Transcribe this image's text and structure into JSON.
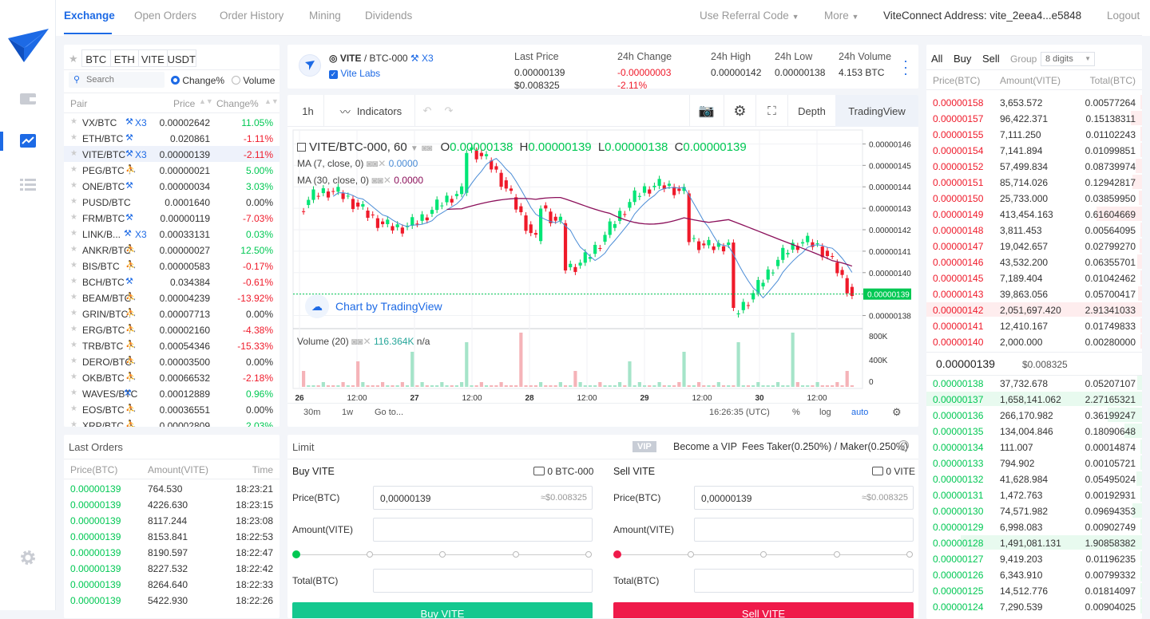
{
  "nav": {
    "tabs": [
      "Exchange",
      "Open Orders",
      "Order History",
      "Mining",
      "Dividends"
    ],
    "referral": "Use Referral Code",
    "more": "More",
    "address": "ViteConnect Address: vite_2eea4...e5848",
    "logout": "Logout"
  },
  "market": {
    "star": "★",
    "quotes": [
      "BTC",
      "ETH",
      "VITE",
      "USDT"
    ],
    "search_placeholder": "Search",
    "sort_change": "Change%",
    "sort_volume": "Volume",
    "head": [
      "Pair",
      "Price",
      "Change%"
    ],
    "pairs": [
      {
        "pair": "VX/BTC",
        "x3": true,
        "icon": "mine",
        "price": "0.00002642",
        "change": "11.05%",
        "up": true
      },
      {
        "pair": "ETH/BTC",
        "x3": false,
        "icon": "mine",
        "price": "0.020861",
        "change": "-1.11%",
        "up": false
      },
      {
        "pair": "VITE/BTC",
        "x3": true,
        "icon": "mine",
        "price": "0.00000139",
        "change": "-2.11%",
        "up": false,
        "selected": true
      },
      {
        "pair": "PEG/BTC",
        "x3": false,
        "icon": "run",
        "price": "0.00000021",
        "change": "5.00%",
        "up": true
      },
      {
        "pair": "ONE/BTC",
        "x3": false,
        "icon": "mine",
        "price": "0.00000034",
        "change": "3.03%",
        "up": true
      },
      {
        "pair": "PUSD/BTC",
        "x3": false,
        "icon": "",
        "price": "0.0001640",
        "change": "0.00%",
        "up": null
      },
      {
        "pair": "FRM/BTC",
        "x3": false,
        "icon": "mine",
        "price": "0.00000119",
        "change": "-7.03%",
        "up": false
      },
      {
        "pair": "LINK/B...",
        "x3": true,
        "icon": "mine",
        "price": "0.00033131",
        "change": "0.03%",
        "up": true
      },
      {
        "pair": "ANKR/BTC",
        "x3": false,
        "icon": "run",
        "price": "0.00000027",
        "change": "12.50%",
        "up": true
      },
      {
        "pair": "BIS/BTC",
        "x3": false,
        "icon": "run",
        "price": "0.00000583",
        "change": "-0.17%",
        "up": false
      },
      {
        "pair": "BCH/BTC",
        "x3": false,
        "icon": "mine",
        "price": "0.034384",
        "change": "-0.61%",
        "up": false
      },
      {
        "pair": "BEAM/BTC",
        "x3": false,
        "icon": "run",
        "price": "0.00004239",
        "change": "-13.92%",
        "up": false
      },
      {
        "pair": "GRIN/BTC",
        "x3": false,
        "icon": "run",
        "price": "0.00007713",
        "change": "0.00%",
        "up": null
      },
      {
        "pair": "ERG/BTC",
        "x3": false,
        "icon": "run",
        "price": "0.00002160",
        "change": "-4.38%",
        "up": false
      },
      {
        "pair": "TRB/BTC",
        "x3": false,
        "icon": "run",
        "price": "0.00054346",
        "change": "-15.33%",
        "up": false
      },
      {
        "pair": "DERO/BTC",
        "x3": false,
        "icon": "run",
        "price": "0.00003500",
        "change": "0.00%",
        "up": null
      },
      {
        "pair": "OKB/BTC",
        "x3": false,
        "icon": "run",
        "price": "0.00066532",
        "change": "-2.18%",
        "up": false
      },
      {
        "pair": "WAVES/BTC",
        "x3": false,
        "icon": "mine",
        "price": "0.00012889",
        "change": "0.96%",
        "up": true
      },
      {
        "pair": "EOS/BTC",
        "x3": false,
        "icon": "run",
        "price": "0.00036551",
        "change": "0.00%",
        "up": null
      },
      {
        "pair": "XRP/BTC",
        "x3": false,
        "icon": "run",
        "price": "0.00002809",
        "change": "2.03%",
        "up": true
      }
    ]
  },
  "last_orders": {
    "title": "Last Orders",
    "head": [
      "Price(BTC)",
      "Amount(VITE)",
      "Time"
    ],
    "rows": [
      [
        "0.00000139",
        "764.530",
        "18:23:21"
      ],
      [
        "0.00000139",
        "4226.630",
        "18:23:15"
      ],
      [
        "0.00000139",
        "8117.244",
        "18:23:08"
      ],
      [
        "0.00000139",
        "8153.841",
        "18:22:53"
      ],
      [
        "0.00000139",
        "8190.597",
        "18:22:47"
      ],
      [
        "0.00000139",
        "8227.532",
        "18:22:42"
      ],
      [
        "0.00000139",
        "8264.640",
        "18:22:33"
      ],
      [
        "0.00000139",
        "5422.930",
        "18:22:26"
      ]
    ]
  },
  "ticker": {
    "pair_main": "VITE",
    "pair_sep": "/",
    "pair_rest": "BTC-000",
    "x3": "X3",
    "issuer": "Vite Labs",
    "last_price_label": "Last Price",
    "last_price": "0.00000139",
    "last_price_usd": "$0.008325",
    "change_label": "24h Change",
    "change": "-0.00000003",
    "change_pct": "-2.11%",
    "high_label": "24h High",
    "high": "0.00000142",
    "low_label": "24h Low",
    "low": "0.00000138",
    "vol_label": "24h Volume",
    "vol": "4.153 BTC"
  },
  "chart_toolbar": {
    "interval": "1h",
    "indicators": "Indicators",
    "depth": "Depth",
    "tradingview": "TradingView"
  },
  "chart_data": {
    "type": "candlestick",
    "symbol": "VITE/BTC-000, 60",
    "ohlc": {
      "o_label": "O",
      "o": "0.00000138",
      "h_label": "H",
      "h": "0.00000139",
      "l_label": "L",
      "l": "0.00000138",
      "c_label": "C",
      "c": "0.00000139"
    },
    "ma7": {
      "label": "MA (7, close, 0)",
      "value": "0.0000"
    },
    "ma30": {
      "label": "MA (30, close, 0)",
      "value": "0.0000"
    },
    "ylim": [
      1.375e-06,
      1.465e-06
    ],
    "y_ticks": [
      "0.00000146",
      "0.00000145",
      "0.00000144",
      "0.00000143",
      "0.00000142",
      "0.00000141",
      "0.00000140",
      "0.00000139",
      "0.00000138"
    ],
    "x_ticks": [
      "26",
      "12:00",
      "27",
      "12:00",
      "28",
      "12:00",
      "29",
      "12:00",
      "30",
      "12:00"
    ],
    "current_price": "0.00000139",
    "watermark": "Chart by TradingView",
    "volume": {
      "label": "Volume (20)",
      "value": "116.364K",
      "extra": "n/a",
      "ticks": [
        "800K",
        "400K",
        "0"
      ]
    },
    "bottom": {
      "r30": "30m",
      "r1w": "1w",
      "goto": "Go to...",
      "time": "16:26:35 (UTC)",
      "pct": "%",
      "log": "log",
      "auto": "auto"
    }
  },
  "trade": {
    "title": "Limit",
    "vip": "VIP",
    "vip_text": "Become a VIP",
    "fees": "Fees Taker(0.250%) / Maker(0.250%)",
    "buy": {
      "title": "Buy VITE",
      "balance": "0 BTC-000",
      "price_label": "Price(BTC)",
      "price": "0,00000139",
      "price_usd": "≈$0.008325",
      "amount_label": "Amount(VITE)",
      "total_label": "Total(BTC)",
      "button": "Buy VITE"
    },
    "sell": {
      "title": "Sell VITE",
      "balance": "0 VITE",
      "price_label": "Price(BTC)",
      "price": "0,00000139",
      "price_usd": "≈$0.008325",
      "amount_label": "Amount(VITE)",
      "total_label": "Total(BTC)",
      "button": "Sell VITE"
    }
  },
  "book": {
    "tabs": [
      "All",
      "Buy",
      "Sell"
    ],
    "group_label": "Group",
    "group_value": "8 digits",
    "head": [
      "Price(BTC)",
      "Amount(VITE)",
      "Total(BTC)"
    ],
    "asks": [
      [
        "0.00000158",
        "3,653.572",
        "0.00577264"
      ],
      [
        "0.00000157",
        "96,422.371",
        "0.15138311"
      ],
      [
        "0.00000155",
        "7,111.250",
        "0.01102243"
      ],
      [
        "0.00000154",
        "7,141.894",
        "0.01099851"
      ],
      [
        "0.00000152",
        "57,499.834",
        "0.08739974"
      ],
      [
        "0.00000151",
        "85,714.026",
        "0.12942817"
      ],
      [
        "0.00000150",
        "25,733.000",
        "0.03859950"
      ],
      [
        "0.00000149",
        "413,454.163",
        "0.61604669"
      ],
      [
        "0.00000148",
        "3,811.453",
        "0.00564095"
      ],
      [
        "0.00000147",
        "19,042.657",
        "0.02799270"
      ],
      [
        "0.00000146",
        "43,532.200",
        "0.06355701"
      ],
      [
        "0.00000145",
        "7,189.404",
        "0.01042462"
      ],
      [
        "0.00000143",
        "39,863.056",
        "0.05700417"
      ],
      [
        "0.00000142",
        "2,051,697.420",
        "2.91341033"
      ],
      [
        "0.00000141",
        "12,410.167",
        "0.01749833"
      ],
      [
        "0.00000140",
        "2,000.000",
        "0.00280000"
      ]
    ],
    "mid_price": "0.00000139",
    "mid_usd": "$0.008325",
    "bids": [
      [
        "0.00000138",
        "37,732.678",
        "0.05207107"
      ],
      [
        "0.00000137",
        "1,658,141.062",
        "2.27165321"
      ],
      [
        "0.00000136",
        "266,170.982",
        "0.36199247"
      ],
      [
        "0.00000135",
        "134,004.846",
        "0.18090648"
      ],
      [
        "0.00000134",
        "111.007",
        "0.00014874"
      ],
      [
        "0.00000133",
        "794.902",
        "0.00105721"
      ],
      [
        "0.00000132",
        "41,628.984",
        "0.05495024"
      ],
      [
        "0.00000131",
        "1,472.763",
        "0.00192931"
      ],
      [
        "0.00000130",
        "74,571.982",
        "0.09694353"
      ],
      [
        "0.00000129",
        "6,998.083",
        "0.00902749"
      ],
      [
        "0.00000128",
        "1,491,081.131",
        "1.90858382"
      ],
      [
        "0.00000127",
        "9,419.203",
        "0.01196235"
      ],
      [
        "0.00000126",
        "6,343.910",
        "0.00799332"
      ],
      [
        "0.00000125",
        "14,512.776",
        "0.01814097"
      ],
      [
        "0.00000124",
        "7,290.539",
        "0.00904025"
      ]
    ]
  },
  "colors": {
    "accent": "#1d6ae5",
    "up": "#00c853",
    "down": "#ef1a2a"
  }
}
